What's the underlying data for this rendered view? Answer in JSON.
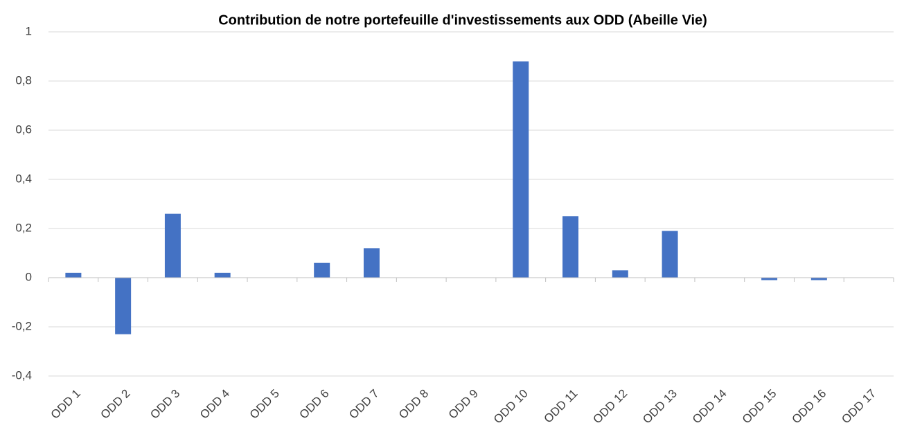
{
  "chart_data": {
    "type": "bar",
    "title": "Contribution de notre portefeuille d'investissements aux ODD (Abeille Vie)",
    "categories": [
      "ODD 1",
      "ODD 2",
      "ODD 3",
      "ODD 4",
      "ODD 5",
      "ODD 6",
      "ODD 7",
      "ODD 8",
      "ODD 9",
      "ODD 10",
      "ODD 11",
      "ODD 12",
      "ODD 13",
      "ODD 14",
      "ODD 15",
      "ODD 16",
      "ODD 17"
    ],
    "values": [
      0.02,
      -0.23,
      0.26,
      0.02,
      0,
      0.06,
      0.12,
      0,
      0,
      0.88,
      0.25,
      0.03,
      0.19,
      0,
      -0.01,
      -0.01,
      0
    ],
    "color": "#4472c4",
    "ylim": [
      -0.4,
      1
    ],
    "yticks": [
      {
        "value": -0.4,
        "label": "-0,4"
      },
      {
        "value": -0.2,
        "label": "-0,2"
      },
      0,
      {
        "value": 0.2,
        "label": "0,2"
      },
      {
        "value": 0.4,
        "label": "0,4"
      },
      {
        "value": 0.6,
        "label": "0,6"
      },
      {
        "value": 0.8,
        "label": "0,8"
      },
      1
    ],
    "grid": true
  }
}
